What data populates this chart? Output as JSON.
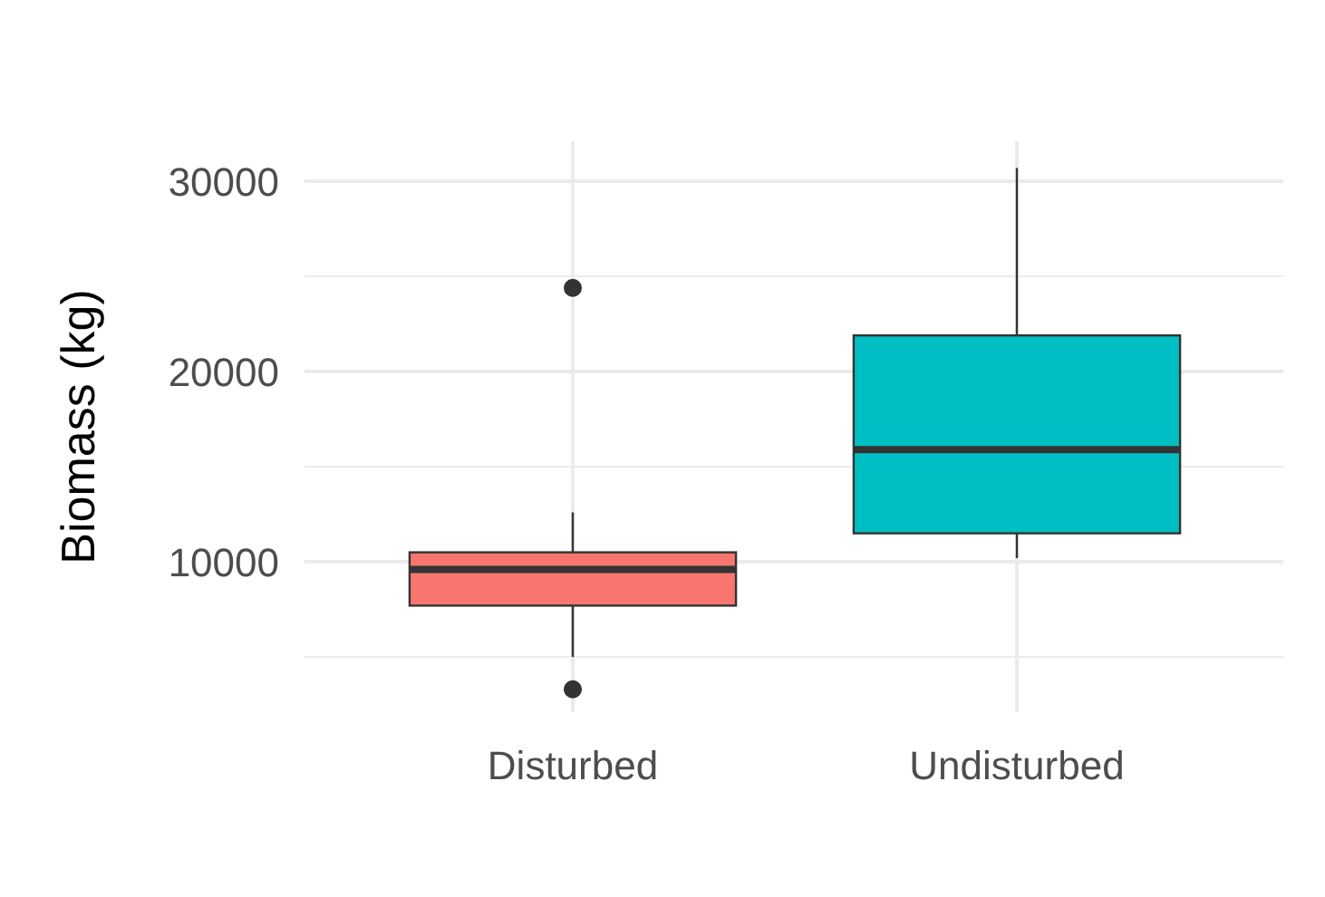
{
  "chart_data": {
    "type": "box",
    "ylabel": "Biomass (kg)",
    "categories": [
      "Disturbed",
      "Undisturbed"
    ],
    "colors": [
      "#f8766d",
      "#00bfc4"
    ],
    "boxes": [
      {
        "low": 5000,
        "q1": 7700,
        "median": 9600,
        "q3": 10500,
        "high": 12600,
        "outliers": [
          24400,
          3300
        ]
      },
      {
        "low": 10200,
        "q1": 11500,
        "median": 15900,
        "q3": 21900,
        "high": 30700
      }
    ],
    "ylim": [
      2100,
      32100
    ],
    "yticks": [
      {
        "value": 5000,
        "label": null
      },
      10000,
      {
        "value": 15000,
        "label": null
      },
      20000,
      {
        "value": 25000,
        "label": null
      },
      30000
    ],
    "grid": true
  }
}
